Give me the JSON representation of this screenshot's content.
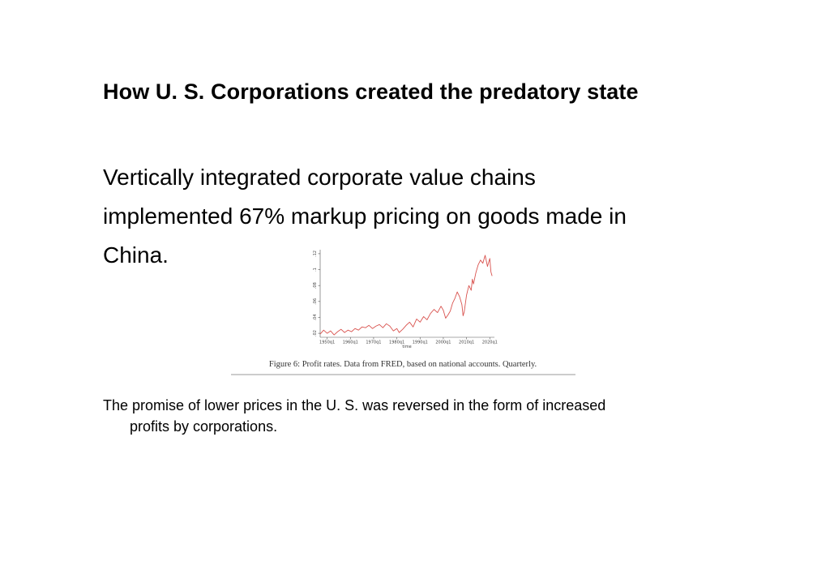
{
  "slide": {
    "title": "How U. S. Corporations created the predatory state",
    "lead_lines": [
      "Vertically integrated corporate value chains",
      "implemented  67% markup pricing on goods made in",
      "China."
    ],
    "note_lines": [
      "The promise of lower prices in the U. S. was reversed in the form of increased",
      "profits by corporations."
    ]
  },
  "colors": {
    "series": "#d9534f",
    "axis": "#555555",
    "caption_rule": "#bbbbbb"
  },
  "chart_data": {
    "type": "line",
    "title": "",
    "caption": "Figure 6: Profit rates. Data from FRED, based on national accounts. Quarterly.",
    "xlabel": "time",
    "ylabel": "",
    "x_tick_labels": [
      "1950q1",
      "1960q1",
      "1970q1",
      "1980q1",
      "1990q1",
      "2000q1",
      "2010q1",
      "2020q1"
    ],
    "x_tick_values": [
      1950,
      1960,
      1970,
      1980,
      1990,
      2000,
      2010,
      2020
    ],
    "y_tick_labels": [
      ".02",
      ".04",
      ".06",
      ".08",
      ".1",
      ".12"
    ],
    "y_tick_values": [
      0.02,
      0.04,
      0.06,
      0.08,
      0.1,
      0.12
    ],
    "xlim": [
      1947,
      2022
    ],
    "ylim": [
      0.015,
      0.125
    ],
    "grid": false,
    "series": [
      {
        "name": "Profit rate",
        "points": [
          [
            1947.0,
            0.019
          ],
          [
            1948.5,
            0.024
          ],
          [
            1950.0,
            0.02
          ],
          [
            1951.5,
            0.023
          ],
          [
            1953.0,
            0.018
          ],
          [
            1954.5,
            0.022
          ],
          [
            1956.0,
            0.025
          ],
          [
            1957.5,
            0.021
          ],
          [
            1959.0,
            0.024
          ],
          [
            1960.5,
            0.022
          ],
          [
            1962.0,
            0.026
          ],
          [
            1963.5,
            0.024
          ],
          [
            1965.0,
            0.028
          ],
          [
            1966.5,
            0.027
          ],
          [
            1968.0,
            0.03
          ],
          [
            1969.5,
            0.026
          ],
          [
            1971.0,
            0.029
          ],
          [
            1972.5,
            0.031
          ],
          [
            1974.0,
            0.027
          ],
          [
            1975.5,
            0.032
          ],
          [
            1977.0,
            0.029
          ],
          [
            1978.5,
            0.023
          ],
          [
            1980.0,
            0.026
          ],
          [
            1981.0,
            0.021
          ],
          [
            1982.5,
            0.025
          ],
          [
            1984.0,
            0.03
          ],
          [
            1985.5,
            0.034
          ],
          [
            1987.0,
            0.028
          ],
          [
            1988.5,
            0.038
          ],
          [
            1990.0,
            0.034
          ],
          [
            1991.5,
            0.041
          ],
          [
            1993.0,
            0.037
          ],
          [
            1994.5,
            0.045
          ],
          [
            1996.0,
            0.05
          ],
          [
            1997.5,
            0.046
          ],
          [
            1999.0,
            0.054
          ],
          [
            2000.0,
            0.049
          ],
          [
            2001.0,
            0.039
          ],
          [
            2002.0,
            0.043
          ],
          [
            2003.0,
            0.048
          ],
          [
            2004.0,
            0.058
          ],
          [
            2005.0,
            0.064
          ],
          [
            2006.0,
            0.072
          ],
          [
            2007.0,
            0.066
          ],
          [
            2008.0,
            0.056
          ],
          [
            2008.5,
            0.042
          ],
          [
            2009.0,
            0.047
          ],
          [
            2010.0,
            0.068
          ],
          [
            2011.0,
            0.08
          ],
          [
            2012.0,
            0.074
          ],
          [
            2012.5,
            0.088
          ],
          [
            2013.0,
            0.082
          ],
          [
            2014.0,
            0.096
          ],
          [
            2015.0,
            0.106
          ],
          [
            2016.0,
            0.112
          ],
          [
            2017.0,
            0.108
          ],
          [
            2018.0,
            0.118
          ],
          [
            2018.5,
            0.111
          ],
          [
            2019.0,
            0.104
          ],
          [
            2020.0,
            0.114
          ],
          [
            2020.5,
            0.097
          ],
          [
            2021.0,
            0.092
          ]
        ]
      }
    ]
  }
}
